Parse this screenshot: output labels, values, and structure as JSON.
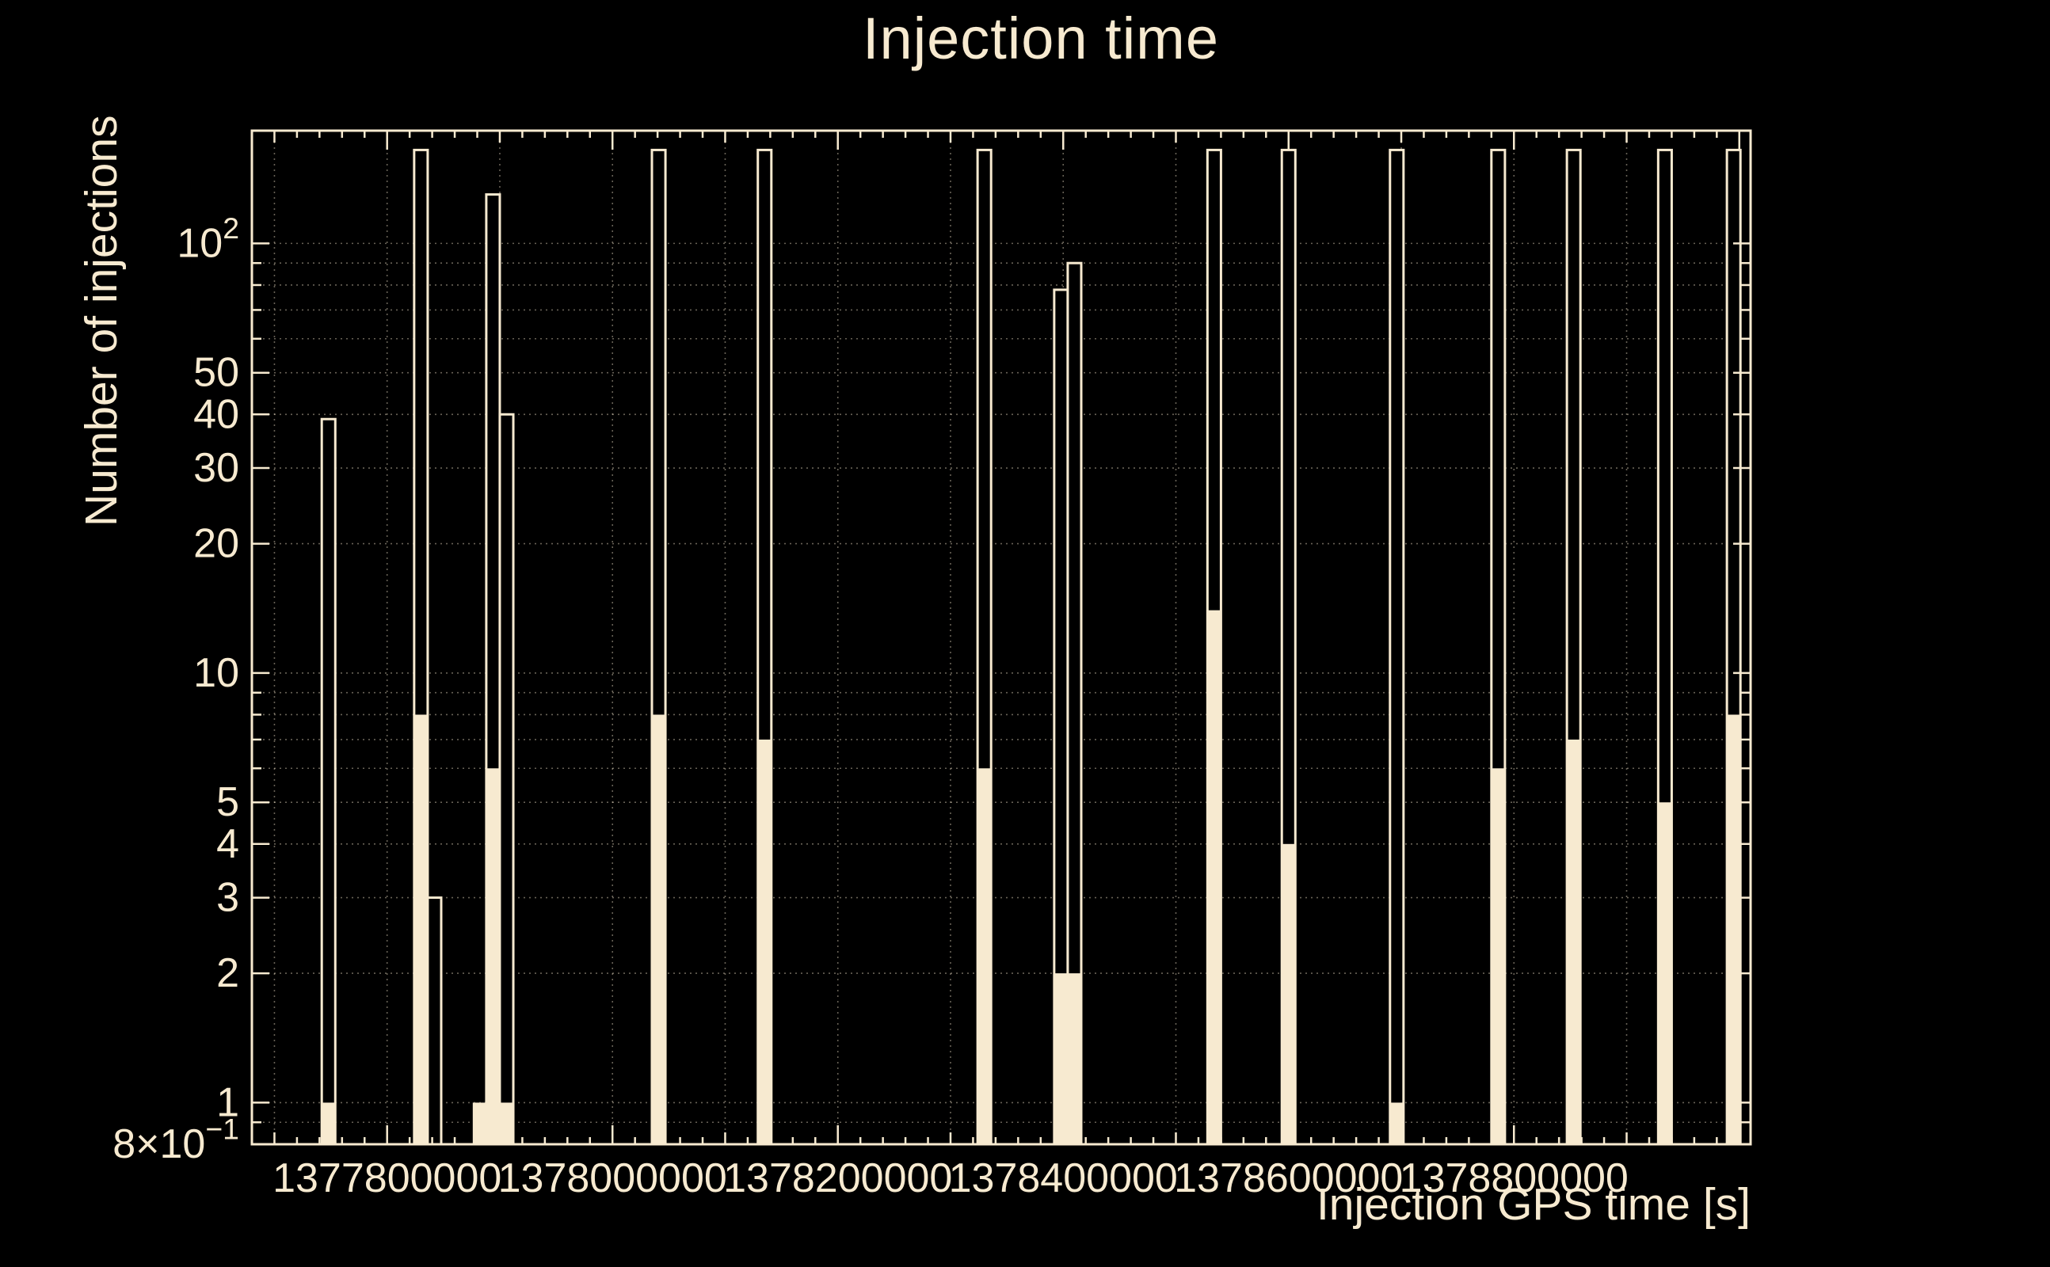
{
  "colors": {
    "background": "#000000",
    "foreground": "#f7ead0"
  },
  "chart_data": {
    "type": "bar",
    "title": "Injection time",
    "xlabel": "Injection GPS time [s]",
    "ylabel": "Number of injections",
    "x_axis": {
      "min": 1377680000,
      "max": 1379010000,
      "major": [
        {
          "v": 1377800000,
          "label": "1377800000"
        },
        {
          "v": 1378000000,
          "label": "1378000000"
        },
        {
          "v": 1378200000,
          "label": "1378200000"
        },
        {
          "v": 1378400000,
          "label": "1378400000"
        },
        {
          "v": 1378600000,
          "label": "1378600000"
        },
        {
          "v": 1378800000,
          "label": "1378800000"
        }
      ],
      "medium_step": 100000,
      "minor_step": 20000
    },
    "y_axis": {
      "scale": "log",
      "min": 0.8,
      "max": 183,
      "major": [
        {
          "v": 0.8,
          "label": "8×10^−1"
        },
        {
          "v": 1,
          "label": "1"
        },
        {
          "v": 2,
          "label": "2"
        },
        {
          "v": 3,
          "label": "3"
        },
        {
          "v": 4,
          "label": "4"
        },
        {
          "v": 5,
          "label": "5"
        },
        {
          "v": 10,
          "label": "10"
        },
        {
          "v": 20,
          "label": "20"
        },
        {
          "v": 30,
          "label": "30"
        },
        {
          "v": 40,
          "label": "40"
        },
        {
          "v": 50,
          "label": "50"
        },
        {
          "v": 100,
          "label": "10^2"
        }
      ],
      "minor": [
        0.9,
        6,
        7,
        8,
        9,
        60,
        70,
        80,
        90
      ]
    },
    "grid": {
      "y_values": [
        0.9,
        1,
        2,
        3,
        4,
        5,
        6,
        7,
        8,
        9,
        10,
        20,
        30,
        40,
        50,
        60,
        70,
        80,
        90,
        100
      ],
      "x_step": 100000
    },
    "bin_width_s": 12000,
    "series": [
      {
        "name": "outline-histogram",
        "style": "hollow",
        "bins": [
          [
            1377748000,
            39
          ],
          [
            1377830000,
            165
          ],
          [
            1377842000,
            3
          ],
          [
            1377894000,
            130
          ],
          [
            1377906000,
            40
          ],
          [
            1378041000,
            165
          ],
          [
            1378135000,
            165
          ],
          [
            1378330000,
            165
          ],
          [
            1378398000,
            78
          ],
          [
            1378410000,
            90
          ],
          [
            1378534000,
            165
          ],
          [
            1378600000,
            165
          ],
          [
            1378696000,
            165
          ],
          [
            1378786000,
            165
          ],
          [
            1378853000,
            165
          ],
          [
            1378934000,
            165
          ],
          [
            1378995000,
            165
          ]
        ]
      },
      {
        "name": "filled-histogram",
        "style": "filled",
        "bins": [
          [
            1377748000,
            1
          ],
          [
            1377830000,
            8
          ],
          [
            1377882000,
            1
          ],
          [
            1377894000,
            6
          ],
          [
            1377906000,
            1
          ],
          [
            1378041000,
            8
          ],
          [
            1378135000,
            7
          ],
          [
            1378330000,
            6
          ],
          [
            1378398000,
            2
          ],
          [
            1378410000,
            2
          ],
          [
            1378534000,
            14
          ],
          [
            1378600000,
            4
          ],
          [
            1378696000,
            1
          ],
          [
            1378786000,
            6
          ],
          [
            1378853000,
            7
          ],
          [
            1378934000,
            5
          ],
          [
            1378995000,
            8
          ]
        ]
      }
    ]
  }
}
